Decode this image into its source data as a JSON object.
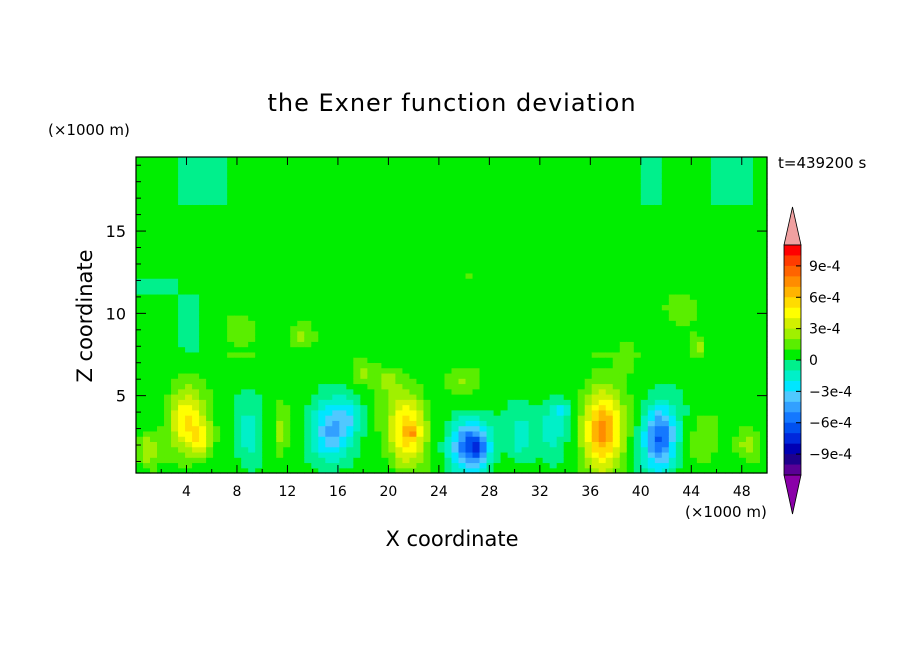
{
  "chart_data": {
    "type": "heatmap",
    "title": "the Exner function deviation",
    "xlabel": "X coordinate",
    "ylabel": "Z coordinate",
    "x_unit": "(×1000 m)",
    "z_unit": "(×1000 m)",
    "time_label": "t=439200 s",
    "xlim": [
      0,
      50
    ],
    "ylim": [
      0.3,
      19.5
    ],
    "x_ticks": [
      "4",
      "8",
      "12",
      "16",
      "20",
      "24",
      "28",
      "32",
      "36",
      "40",
      "44",
      "48"
    ],
    "y_ticks": [
      "5",
      "10",
      "15"
    ],
    "colorbar": {
      "labels": [
        "9e-4",
        "6e-4",
        "3e-4",
        "0",
        "−3e-4",
        "−6e-4",
        "−9e-4"
      ],
      "levels": [
        -0.0012,
        -0.0011,
        -0.001,
        -0.0009,
        -0.0008,
        -0.0007,
        -0.0006,
        -0.0005,
        -0.0004,
        -0.0003,
        -0.0002,
        -0.0001,
        0,
        0.0001,
        0.0002,
        0.0003,
        0.0004,
        0.0005,
        0.0006,
        0.0007,
        0.0008,
        0.0009,
        0.001,
        0.0011
      ],
      "colors": [
        "#8a00a8",
        "#5a0096",
        "#1e008c",
        "#0000b4",
        "#0028dc",
        "#0050f0",
        "#1478ff",
        "#32a0ff",
        "#50c8ff",
        "#00e6ff",
        "#00f0c8",
        "#00f08c",
        "#00ee00",
        "#5aee00",
        "#a0f000",
        "#d2f000",
        "#ffff00",
        "#ffdc00",
        "#ffb400",
        "#ff8c00",
        "#ff6400",
        "#ff3c00",
        "#ff0000",
        "#f0a0a0"
      ]
    },
    "blobs": [
      {
        "x": 4.0,
        "z": 3.5,
        "sx": 1.5,
        "sz": 2.0,
        "v": 0.00045
      },
      {
        "x": 5.2,
        "z": 2.3,
        "sx": 0.8,
        "sz": 1.0,
        "v": 0.0003
      },
      {
        "x": 1.0,
        "z": 1.8,
        "sx": 0.8,
        "sz": 1.0,
        "v": 0.00025
      },
      {
        "x": 9.0,
        "z": 2.5,
        "sx": 1.0,
        "sz": 2.0,
        "v": -0.0002
      },
      {
        "x": 11.5,
        "z": 2.8,
        "sx": 0.6,
        "sz": 1.5,
        "v": 0.0002
      },
      {
        "x": 15.5,
        "z": 2.8,
        "sx": 1.6,
        "sz": 1.8,
        "v": -0.00045
      },
      {
        "x": 17.0,
        "z": 3.8,
        "sx": 1.0,
        "sz": 1.0,
        "v": -0.0002
      },
      {
        "x": 21.5,
        "z": 3.0,
        "sx": 1.5,
        "sz": 2.2,
        "v": 0.00055
      },
      {
        "x": 21.8,
        "z": 2.8,
        "sx": 0.5,
        "sz": 0.5,
        "v": 0.0002
      },
      {
        "x": 26.5,
        "z": 2.0,
        "sx": 1.5,
        "sz": 1.5,
        "v": -0.0007
      },
      {
        "x": 27.2,
        "z": 1.8,
        "sx": 0.6,
        "sz": 0.6,
        "v": -0.0002
      },
      {
        "x": 30.5,
        "z": 2.5,
        "sx": 1.0,
        "sz": 1.5,
        "v": -0.0002
      },
      {
        "x": 33.0,
        "z": 3.2,
        "sx": 1.2,
        "sz": 1.5,
        "v": -0.00025
      },
      {
        "x": 33.8,
        "z": 4.2,
        "sx": 0.6,
        "sz": 0.5,
        "v": -0.0002
      },
      {
        "x": 37.0,
        "z": 3.0,
        "sx": 1.5,
        "sz": 2.4,
        "v": 0.00072
      },
      {
        "x": 41.5,
        "z": 2.5,
        "sx": 1.3,
        "sz": 2.0,
        "v": -0.00065
      },
      {
        "x": 45.0,
        "z": 2.5,
        "sx": 1.2,
        "sz": 1.5,
        "v": 0.00015
      },
      {
        "x": 48.5,
        "z": 2.0,
        "sx": 1.0,
        "sz": 1.0,
        "v": 0.0002
      },
      {
        "x": 13.0,
        "z": 8.7,
        "sx": 1.1,
        "sz": 0.9,
        "v": 0.00022
      },
      {
        "x": 18.0,
        "z": 6.5,
        "sx": 1.0,
        "sz": 0.8,
        "v": 0.00018
      },
      {
        "x": 20.0,
        "z": 6.0,
        "sx": 1.0,
        "sz": 0.8,
        "v": 0.00015
      },
      {
        "x": 26.0,
        "z": 6.0,
        "sx": 1.5,
        "sz": 0.8,
        "v": 0.00015
      },
      {
        "x": 39.0,
        "z": 7.5,
        "sx": 1.0,
        "sz": 1.2,
        "v": 0.00012
      },
      {
        "x": 44.5,
        "z": 8.0,
        "sx": 0.6,
        "sz": 0.6,
        "v": 0.0002
      },
      {
        "x": 8.0,
        "z": 9.0,
        "sx": 2.0,
        "sz": 1.5,
        "v": 8e-05
      },
      {
        "x": 27.0,
        "z": 11.0,
        "sx": 3.0,
        "sz": 1.5,
        "v": 5e-05
      },
      {
        "x": 43.0,
        "z": 10.5,
        "sx": 3.0,
        "sz": 1.5,
        "v": 8e-05
      }
    ],
    "zero_bands": [
      {
        "x0": 0,
        "x1": 50,
        "z0": 0.3,
        "z1": 7.5,
        "v": 4e-05
      },
      {
        "x0": 0,
        "x1": 50,
        "z0": 12,
        "z1": 16.5,
        "v": 6e-05
      },
      {
        "x0": 10,
        "x1": 40,
        "z0": 16.5,
        "z1": 19.5,
        "v": 6e-05
      },
      {
        "x0": 5,
        "x1": 50,
        "z0": 7.5,
        "z1": 12,
        "v": 3e-05
      }
    ]
  }
}
